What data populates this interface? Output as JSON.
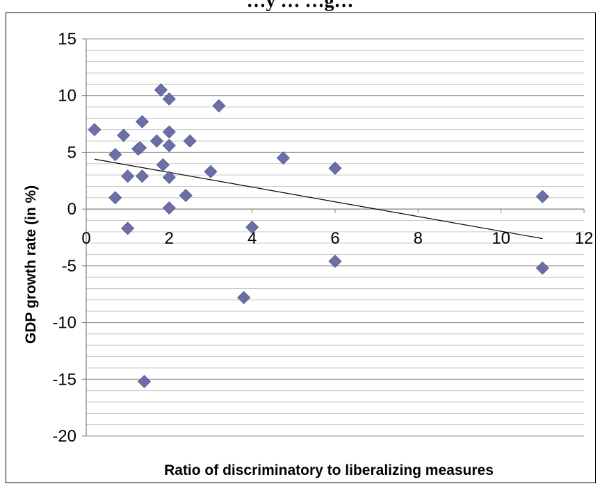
{
  "chart_data": {
    "type": "scatter",
    "title": "…y … …g…",
    "xlabel": "Ratio of discriminatory to liberalizing measures",
    "ylabel": "GDP growth rate (in %)",
    "xlim": [
      0,
      12
    ],
    "ylim": [
      -20,
      15
    ],
    "x_ticks": [
      0,
      2,
      4,
      6,
      8,
      10,
      12
    ],
    "y_ticks": [
      -20,
      -15,
      -10,
      -5,
      0,
      5,
      10,
      15
    ],
    "grid": "horizontal major and minor",
    "marker": "diamond",
    "marker_color": "#6b6fa6",
    "trendline": {
      "type": "linear",
      "from": [
        0.2,
        4.4
      ],
      "to": [
        11.0,
        -2.6
      ]
    },
    "series": [
      {
        "points": [
          [
            0.2,
            7.0
          ],
          [
            0.7,
            4.8
          ],
          [
            0.7,
            1.0
          ],
          [
            0.9,
            6.5
          ],
          [
            1.0,
            2.9
          ],
          [
            1.0,
            -1.7
          ],
          [
            1.25,
            5.3
          ],
          [
            1.3,
            5.4
          ],
          [
            1.35,
            7.7
          ],
          [
            1.35,
            2.9
          ],
          [
            1.4,
            -15.2
          ],
          [
            1.7,
            6.0
          ],
          [
            1.8,
            10.5
          ],
          [
            1.85,
            3.9
          ],
          [
            2.0,
            9.7
          ],
          [
            2.0,
            6.8
          ],
          [
            2.0,
            5.6
          ],
          [
            2.0,
            2.8
          ],
          [
            2.0,
            0.1
          ],
          [
            2.4,
            1.2
          ],
          [
            2.5,
            6.0
          ],
          [
            3.0,
            3.3
          ],
          [
            3.2,
            9.1
          ],
          [
            3.8,
            -7.8
          ],
          [
            4.0,
            -1.6
          ],
          [
            4.75,
            4.5
          ],
          [
            6.0,
            3.6
          ],
          [
            6.0,
            -4.6
          ],
          [
            11.0,
            1.1
          ],
          [
            11.0,
            -5.2
          ]
        ]
      }
    ]
  }
}
